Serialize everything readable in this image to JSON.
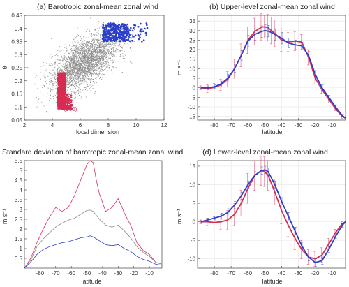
{
  "figure": {
    "colors": {
      "red": "#d62d53",
      "blue": "#2b3fc8",
      "gray": "#8a8a8a",
      "axis": "#404040",
      "grid": "#e6e6e6"
    }
  },
  "chart_data": [
    {
      "id": "a",
      "type": "scatter",
      "title": "(a) Barotropic zonal-mean zonal wind",
      "xlabel": "local dimension",
      "ylabel": "θ",
      "xlim": [
        2,
        12
      ],
      "ylim": [
        0.05,
        0.45
      ],
      "xticks": [
        2,
        4,
        6,
        8,
        10,
        12
      ],
      "yticks": [
        0.05,
        0.1,
        0.15,
        0.2,
        0.25,
        0.3,
        0.35,
        0.4,
        0.45
      ],
      "grid": false,
      "series": [
        {
          "role": "all",
          "color": "gray",
          "center": [
            6.3,
            0.27
          ],
          "spread": [
            1.2,
            0.055
          ],
          "count": 3500
        },
        {
          "role": "high",
          "color": "blue",
          "x_range": [
            7.6,
            11.0
          ],
          "y_range": [
            0.35,
            0.42
          ],
          "count": 371
        },
        {
          "role": "low",
          "color": "red",
          "x_range": [
            4.4,
            5.4
          ],
          "y_range": [
            0.1,
            0.23
          ],
          "count": 900
        }
      ],
      "annotations": [
        {
          "text": "(371)",
          "x": 9.3,
          "y": 0.365,
          "color": "blue"
        },
        {
          "text": "(900)",
          "x": 5.3,
          "y": 0.085,
          "color": "red"
        }
      ]
    },
    {
      "id": "b",
      "type": "line",
      "title": "(b) Upper-level zonal-mean zonal wind",
      "xlabel": "latitude",
      "ylabel": "m s⁻¹",
      "xlim": [
        -90,
        -2
      ],
      "ylim": [
        -17,
        38
      ],
      "xticks": [
        -80,
        -70,
        -60,
        -50,
        -40,
        -30,
        -20,
        -10
      ],
      "yticks": [
        -15,
        -10,
        -5,
        0,
        5,
        10,
        15,
        20,
        25,
        30,
        35
      ],
      "grid": true,
      "x": [
        -88,
        -84,
        -80,
        -76,
        -72,
        -68,
        -64,
        -60,
        -56,
        -52,
        -50,
        -48,
        -46,
        -44,
        -40,
        -36,
        -32,
        -28,
        -24,
        -20,
        -16,
        -12,
        -8,
        -4,
        -2
      ],
      "series": [
        {
          "color": "red",
          "values": [
            0,
            -0.5,
            0.2,
            1.5,
            4.5,
            10,
            17,
            25,
            29.5,
            31.8,
            32,
            31.5,
            30,
            28.5,
            25,
            24,
            24.5,
            24,
            16,
            5,
            -1,
            -6,
            -11,
            -15,
            -16
          ],
          "errors": [
            1,
            2,
            2,
            3,
            4,
            5,
            6,
            7,
            7,
            7,
            6,
            7,
            7,
            7,
            6,
            5,
            5,
            4,
            4,
            3,
            2,
            2,
            1,
            1,
            0
          ]
        },
        {
          "color": "blue",
          "values": [
            0,
            0,
            0.5,
            2,
            5,
            10,
            17,
            24.5,
            28,
            29.5,
            30,
            29.7,
            29,
            28,
            26,
            23.5,
            22.5,
            22,
            17,
            7,
            0,
            -5,
            -10,
            -14.5,
            -16
          ],
          "errors": [
            0.5,
            1,
            1,
            1.5,
            2,
            2,
            2.5,
            3,
            3,
            3,
            3,
            3,
            3,
            3,
            3,
            2.5,
            2.5,
            2,
            2,
            2,
            1.5,
            1,
            1,
            0.5,
            0
          ]
        }
      ]
    },
    {
      "id": "c",
      "type": "line",
      "title": "(c) Standard deviation of barotropic zonal-mean zonal wind",
      "xlabel": "latitude",
      "ylabel": "m s⁻¹",
      "xlim": [
        -90,
        -2
      ],
      "ylim": [
        0,
        5.5
      ],
      "xticks": [
        -80,
        -70,
        -60,
        -50,
        -40,
        -30,
        -20,
        -10
      ],
      "yticks": [
        0.5,
        1,
        1.5,
        2,
        2.5,
        3,
        3.5,
        4,
        4.5,
        5,
        5.5
      ],
      "grid": false,
      "x": [
        -90,
        -86,
        -82,
        -78,
        -74,
        -70,
        -66,
        -62,
        -58,
        -54,
        -50,
        -48,
        -46,
        -44,
        -42,
        -38,
        -34,
        -30,
        -28,
        -26,
        -22,
        -18,
        -14,
        -10,
        -6,
        -2
      ],
      "series": [
        {
          "color": "red",
          "values": [
            0,
            0.5,
            1.3,
            2,
            2.6,
            3.1,
            2.9,
            3.1,
            3.7,
            4.5,
            5.3,
            5.5,
            5.4,
            4.5,
            3.8,
            2.9,
            3.1,
            3.55,
            3.2,
            2.8,
            2.2,
            1.3,
            0.9,
            0.7,
            0.3,
            0.2
          ]
        },
        {
          "color": "gray",
          "values": [
            0,
            0.4,
            1.1,
            1.5,
            1.8,
            2.1,
            2.3,
            2.45,
            2.55,
            2.75,
            2.95,
            2.97,
            2.9,
            2.7,
            2.5,
            2.2,
            2.1,
            2.2,
            2.05,
            1.9,
            1.55,
            1.1,
            0.8,
            0.6,
            0.3,
            0.2
          ]
        },
        {
          "color": "blue",
          "values": [
            0,
            0.3,
            0.7,
            0.95,
            1.1,
            1.2,
            1.3,
            1.35,
            1.45,
            1.55,
            1.6,
            1.65,
            1.6,
            1.5,
            1.4,
            1.2,
            1.15,
            1.2,
            1.1,
            1.0,
            0.85,
            0.6,
            0.45,
            0.35,
            0.2,
            0.15
          ]
        }
      ]
    },
    {
      "id": "d",
      "type": "line",
      "title": "(d) Lower-level zonal-mean zonal wind",
      "xlabel": "latitude",
      "ylabel": "m s⁻¹",
      "xlim": [
        -90,
        -2
      ],
      "ylim": [
        -12.5,
        16.5
      ],
      "xticks": [
        -80,
        -70,
        -60,
        -50,
        -40,
        -30,
        -20,
        -10
      ],
      "yticks": [
        -10,
        -5,
        0,
        5,
        10,
        15
      ],
      "grid": true,
      "x": [
        -88,
        -84,
        -80,
        -76,
        -72,
        -68,
        -64,
        -60,
        -56,
        -52,
        -50,
        -48,
        -44,
        -40,
        -36,
        -32,
        -28,
        -24,
        -20,
        -16,
        -12,
        -8,
        -4,
        -2
      ],
      "series": [
        {
          "color": "red",
          "values": [
            0,
            0,
            -0.2,
            0,
            0.5,
            2,
            5,
            9,
            12.5,
            13.8,
            13.5,
            12.5,
            8,
            3,
            -1,
            -4.5,
            -7.5,
            -9.5,
            -10,
            -9,
            -6,
            -3,
            -0.5,
            0
          ],
          "errors": [
            0.5,
            1,
            1.5,
            2,
            2.5,
            3,
            3.5,
            4,
            4,
            4,
            4,
            4,
            3.5,
            3.5,
            3,
            3,
            2.5,
            2,
            2,
            2,
            1.5,
            1,
            0.5,
            0
          ]
        },
        {
          "color": "blue",
          "values": [
            0,
            0.5,
            1,
            1.5,
            2.5,
            4.5,
            7,
            10,
            12.5,
            13.8,
            14,
            13.5,
            10,
            5.5,
            1.5,
            -2.5,
            -6.5,
            -9.5,
            -11,
            -10.5,
            -7.5,
            -4,
            -1,
            0
          ],
          "errors": [
            0.3,
            0.5,
            0.5,
            0.8,
            1,
            1,
            1,
            1,
            1,
            1,
            1,
            1,
            1,
            1,
            1,
            1,
            1,
            1,
            1,
            1,
            0.8,
            0.5,
            0.5,
            0
          ]
        }
      ]
    }
  ]
}
